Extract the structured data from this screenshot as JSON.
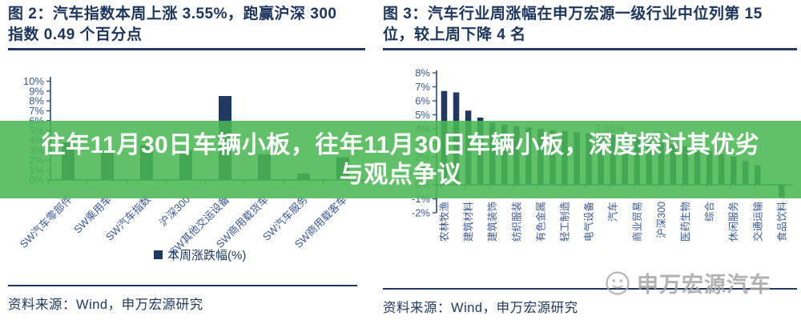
{
  "overlay": {
    "line1": "往年11月30日车辆小板，往年11月30日车辆小板，深度探讨其优劣",
    "line2": "与观点争议"
  },
  "watermark": {
    "text": "申万宏源汽车"
  },
  "colors": {
    "bar_navy": "#1F3864",
    "axis_line": "#27497F",
    "axis_text": "#3A57A0",
    "title_navy": "#1B355F",
    "overlay_green_rgba": "rgba(74,184,82,0.87)",
    "data_label_gray": "#787878",
    "watermark_gray": "#A5A5A5"
  },
  "chart_data": [
    {
      "id": "left",
      "type": "bar",
      "title_lines": [
        "图 2：汽车指数本周上涨 3.55%，跑赢沪深 300",
        "指数 0.49 个百分点"
      ],
      "categories": [
        "SW汽车零部件",
        "SW乘用车",
        "SW汽车指数",
        "沪深300",
        "SW其他交运设备",
        "SW商用载货车",
        "SW汽车服务",
        "SW商用载客车"
      ],
      "values": [
        3.8,
        3.0,
        3.55,
        3.06,
        8.5,
        2.6,
        0.65,
        2.3
      ],
      "legend": "本周涨跌幅(%)",
      "ylabel": "",
      "xlabel": "",
      "ylim": [
        0,
        10
      ],
      "ytick_step": 1,
      "ytick_format": "percent",
      "grid": false,
      "source": "资料来源：Wind，申万宏源研究"
    },
    {
      "id": "right",
      "type": "bar",
      "title_lines": [
        "图 3：汽车行业周涨幅在申万宏源一级行业中位列第 15",
        "位，较上周下降 4 名"
      ],
      "n_bars": 29,
      "values": [
        6.7,
        6.6,
        5.3,
        4.8,
        4.45,
        4.3,
        4.2,
        4.1,
        4.0,
        3.9,
        3.85,
        3.75,
        3.7,
        3.6,
        3.55,
        3.45,
        3.35,
        3.2,
        3.06,
        2.9,
        2.75,
        2.6,
        2.4,
        2.2,
        2.0,
        1.7,
        1.4,
        0.05,
        -0.9
      ],
      "xtick_labels": [
        "农林牧渔",
        "建筑材料",
        "建筑装饰",
        "纺织服装",
        "有色金属",
        "轻工制造",
        "电气设备",
        "汽车",
        "商业贸易",
        "沪深300",
        "医药生物",
        "综合",
        "休闲服务",
        "交通运输",
        "食品饮料"
      ],
      "xtick_bar_indices": [
        1,
        3,
        5,
        7,
        9,
        11,
        13,
        15,
        17,
        19,
        21,
        23,
        25,
        27,
        29
      ],
      "data_labels": [
        {
          "bar": 15,
          "text": "3.55%"
        },
        {
          "bar": 19,
          "text": "3.06%"
        }
      ],
      "ylabel": "",
      "xlabel": "",
      "ylim": [
        -2,
        8
      ],
      "ytick_step": 1,
      "ytick_format": "percent",
      "grid": false,
      "source": "资料来源：Wind，申万宏源研究"
    }
  ]
}
